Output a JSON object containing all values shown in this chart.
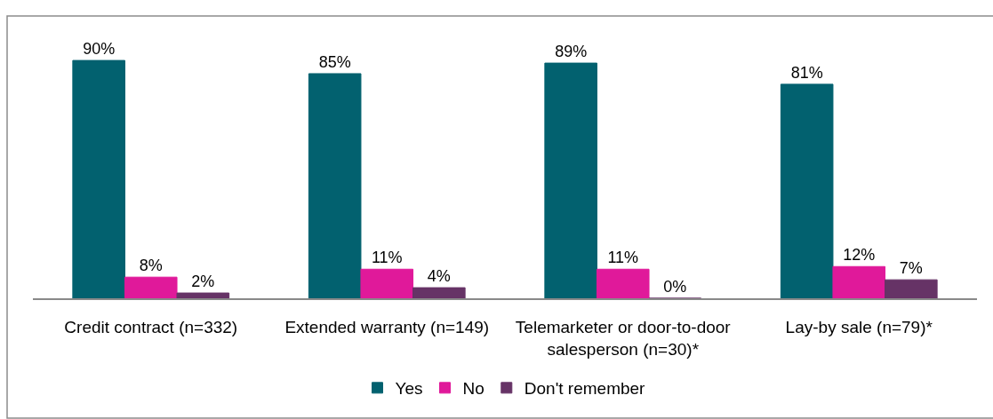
{
  "chart_data": {
    "type": "bar",
    "categories": [
      "Credit contract (n=332)",
      "Extended warranty (n=149)",
      "Telemarketer or door-to-door\nsalesperson (n=30)*",
      "Lay-by sale (n=79)*"
    ],
    "series": [
      {
        "name": "Yes",
        "color": "#02616f",
        "values": [
          90,
          85,
          89,
          81
        ],
        "value_labels": [
          "90%",
          "85%",
          "89%",
          "81%"
        ]
      },
      {
        "name": "No",
        "color": "#e0199a",
        "values": [
          8,
          11,
          11,
          12
        ],
        "value_labels": [
          "8%",
          "11%",
          "11%",
          "12%"
        ]
      },
      {
        "name": "Don't remember",
        "color": "#663366",
        "values": [
          2,
          4,
          0,
          7
        ],
        "value_labels": [
          "2%",
          "4%",
          "0%",
          "7%"
        ]
      }
    ],
    "grid": false,
    "legend": "bottom",
    "tick_labels": "x"
  }
}
